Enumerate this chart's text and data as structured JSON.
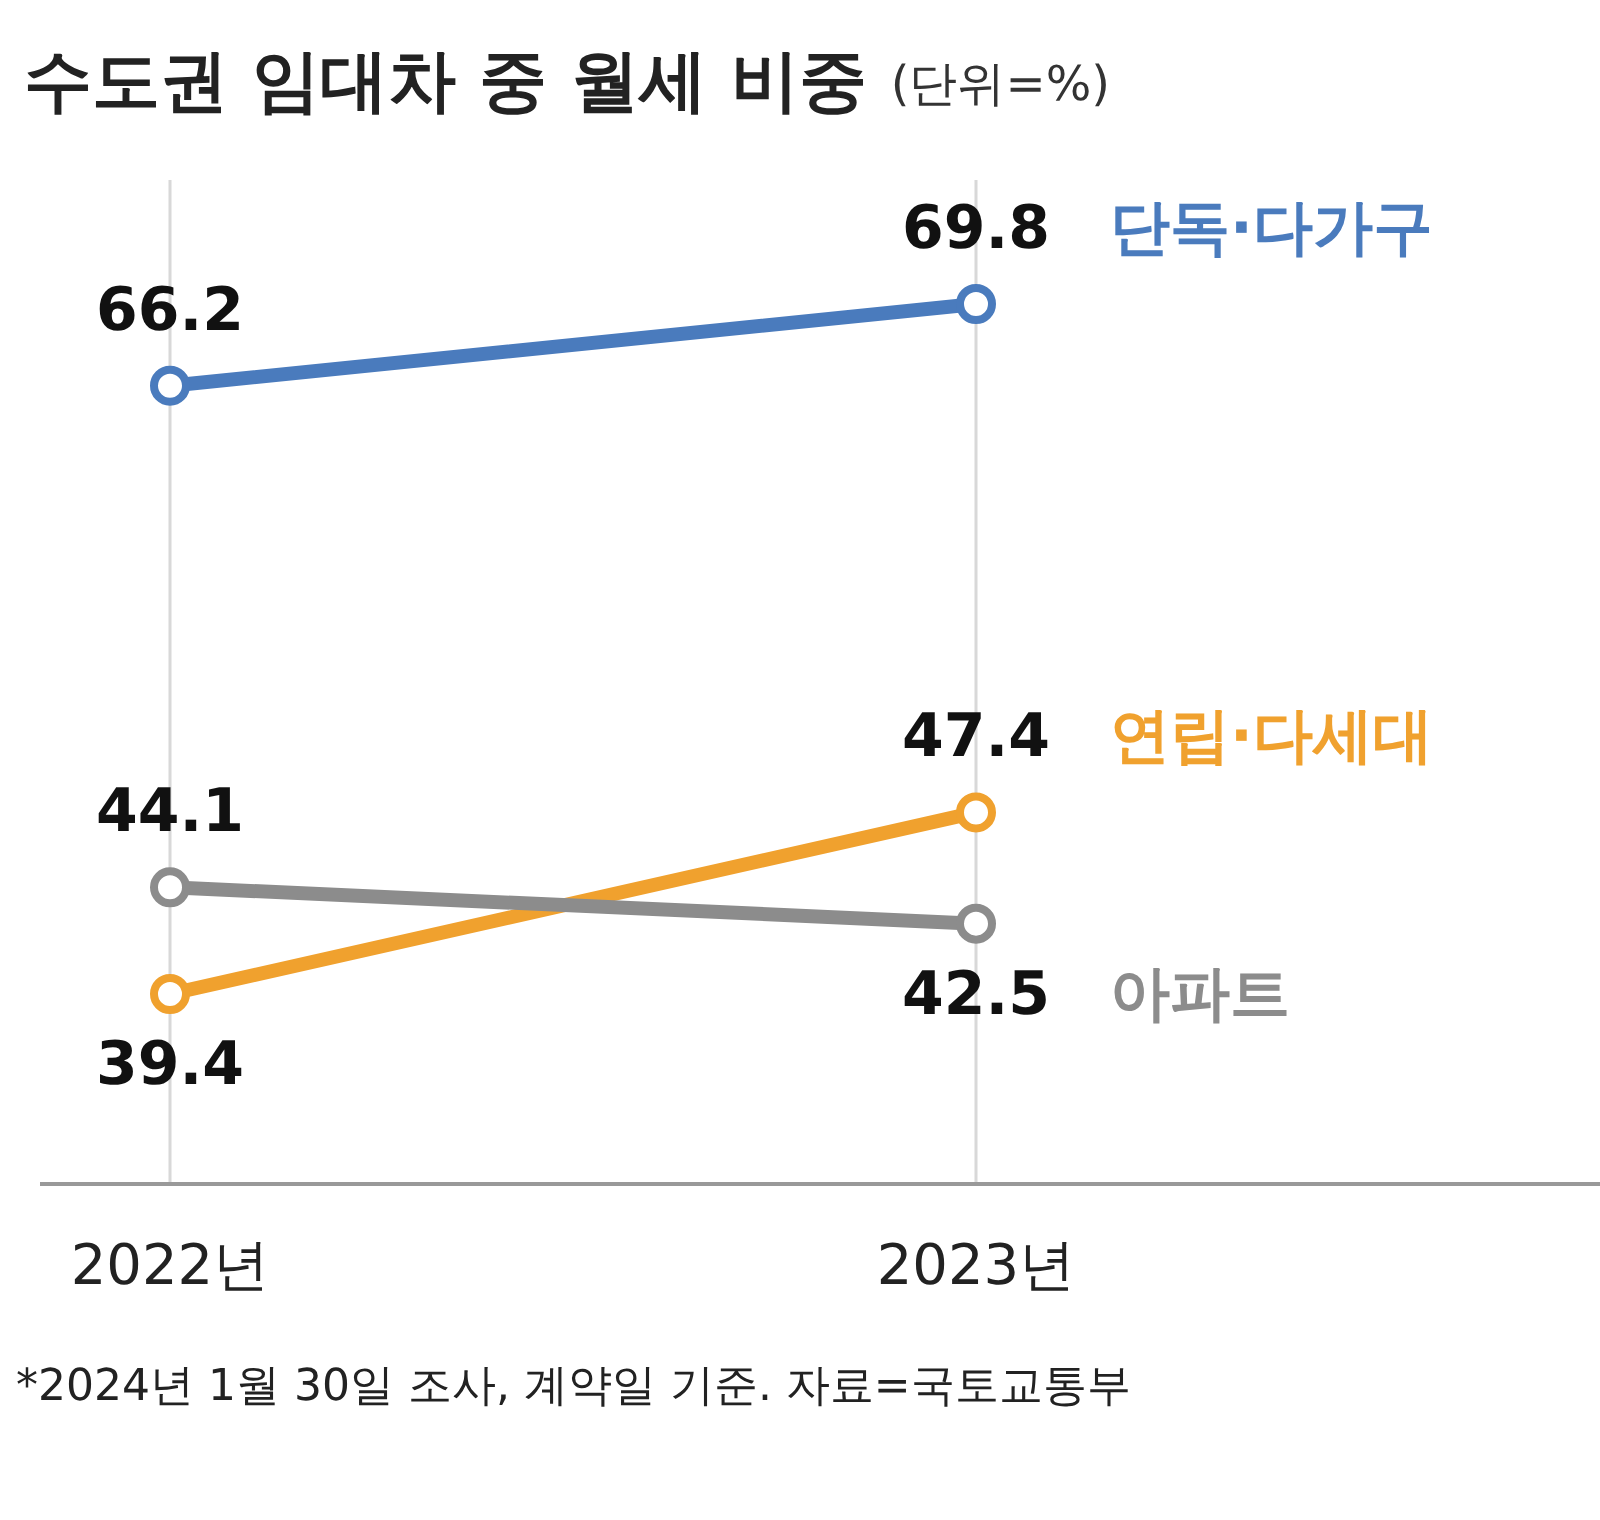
{
  "chart_data": {
    "type": "line",
    "title": "수도권 임대차 중 월세 비중",
    "subtitle": "(단위=%)",
    "categories": [
      "2022년",
      "2023년"
    ],
    "series": [
      {
        "name": "단독·다가구",
        "color": "#4a7bbd",
        "values": [
          66.2,
          69.8
        ]
      },
      {
        "name": "연립·다세대",
        "color": "#f0a12e",
        "values": [
          39.4,
          47.4
        ]
      },
      {
        "name": "아파트",
        "color": "#8c8c8c",
        "values": [
          44.1,
          42.5
        ]
      }
    ],
    "data_labels": true,
    "marker": "circle",
    "line_style": "solid",
    "grid": "x",
    "annotations": [
      "*2024년 1월 30일 조사, 계약일 기준. 자료=국토교통부"
    ]
  }
}
